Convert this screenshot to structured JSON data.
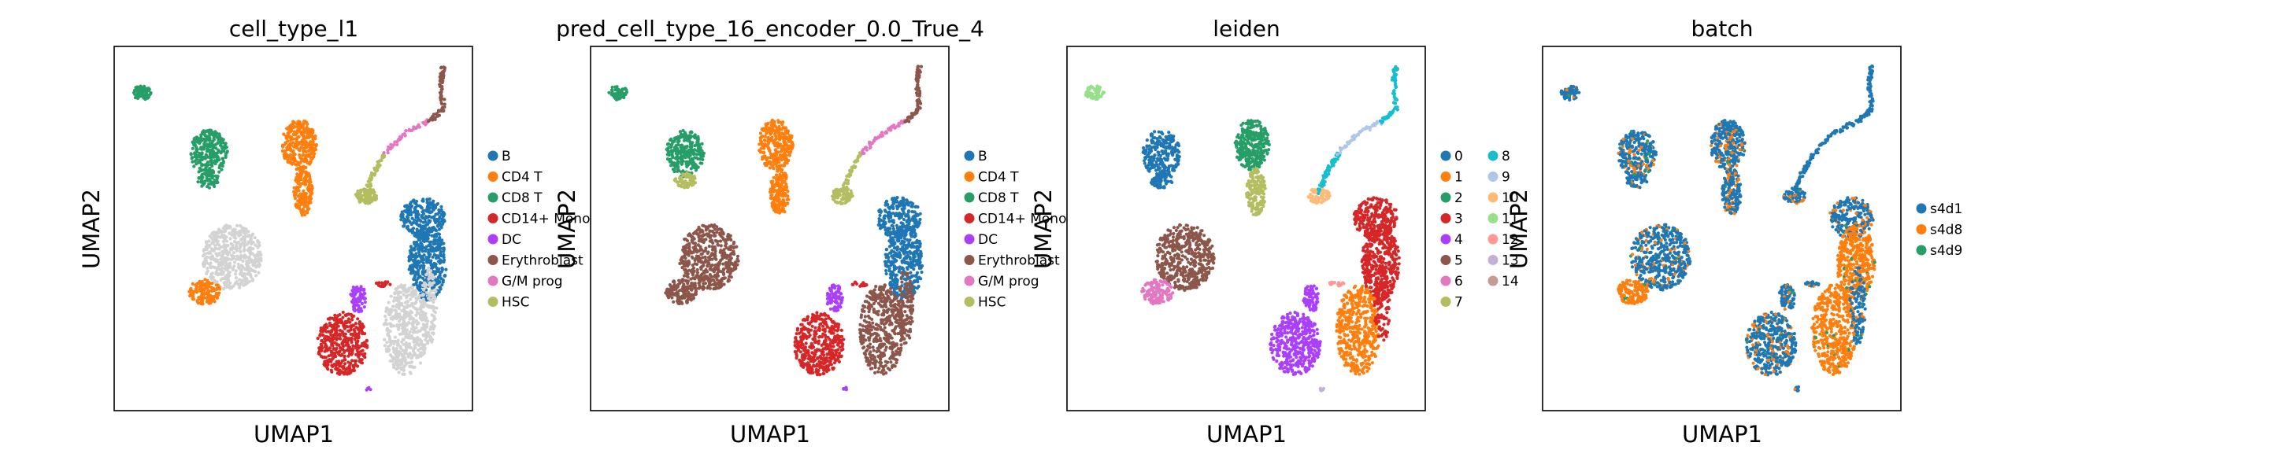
{
  "panels": [
    {
      "title": "cell_type_l1",
      "xlabel": "UMAP1",
      "ylabel": "UMAP2",
      "legend": [
        {
          "label": "B",
          "color": "#1f77b4"
        },
        {
          "label": "CD4 T",
          "color": "#ff7f0e"
        },
        {
          "label": "CD8 T",
          "color": "#279e68"
        },
        {
          "label": "CD14+ Mono",
          "color": "#d62728"
        },
        {
          "label": "DC",
          "color": "#aa40fc"
        },
        {
          "label": "Erythroblast",
          "color": "#8c564b"
        },
        {
          "label": "G/M prog",
          "color": "#e377c2"
        },
        {
          "label": "HSC",
          "color": "#b5bd61"
        }
      ]
    },
    {
      "title": "pred_cell_type_16_encoder_0.0_True_4",
      "xlabel": "UMAP1",
      "ylabel": "UMAP2",
      "legend": [
        {
          "label": "B",
          "color": "#1f77b4"
        },
        {
          "label": "CD4 T",
          "color": "#ff7f0e"
        },
        {
          "label": "CD8 T",
          "color": "#279e68"
        },
        {
          "label": "CD14+ Mono",
          "color": "#d62728"
        },
        {
          "label": "DC",
          "color": "#aa40fc"
        },
        {
          "label": "Erythroblast",
          "color": "#8c564b"
        },
        {
          "label": "G/M prog",
          "color": "#e377c2"
        },
        {
          "label": "HSC",
          "color": "#b5bd61"
        }
      ]
    },
    {
      "title": "leiden",
      "xlabel": "UMAP1",
      "ylabel": "UMAP2",
      "legend": [
        {
          "label": "0",
          "color": "#1f77b4"
        },
        {
          "label": "1",
          "color": "#ff7f0e"
        },
        {
          "label": "2",
          "color": "#279e68"
        },
        {
          "label": "3",
          "color": "#d62728"
        },
        {
          "label": "4",
          "color": "#aa40fc"
        },
        {
          "label": "5",
          "color": "#8c564b"
        },
        {
          "label": "6",
          "color": "#e377c2"
        },
        {
          "label": "7",
          "color": "#b5bd61"
        },
        {
          "label": "8",
          "color": "#17becf"
        },
        {
          "label": "9",
          "color": "#aec7e8"
        },
        {
          "label": "10",
          "color": "#ffbb78"
        },
        {
          "label": "11",
          "color": "#98df8a"
        },
        {
          "label": "12",
          "color": "#ff9896"
        },
        {
          "label": "13",
          "color": "#c5b0d5"
        },
        {
          "label": "14",
          "color": "#c49c94"
        }
      ]
    },
    {
      "title": "batch",
      "xlabel": "UMAP1",
      "ylabel": "UMAP2",
      "legend": [
        {
          "label": "s4d1",
          "color": "#1f77b4"
        },
        {
          "label": "s4d8",
          "color": "#ff7f0e"
        },
        {
          "label": "s4d9",
          "color": "#279e68"
        }
      ]
    }
  ],
  "chart_data": [
    {
      "type": "scatter",
      "title": "cell_type_l1",
      "xlabel": "UMAP1",
      "ylabel": "UMAP2",
      "grid": false,
      "legend_position": "right",
      "series": [
        {
          "name": "B"
        },
        {
          "name": "CD4 T"
        },
        {
          "name": "CD8 T"
        },
        {
          "name": "CD14+ Mono"
        },
        {
          "name": "DC"
        },
        {
          "name": "Erythroblast"
        },
        {
          "name": "G/M prog"
        },
        {
          "name": "HSC"
        }
      ]
    },
    {
      "type": "scatter",
      "title": "pred_cell_type_16_encoder_0.0_True_4",
      "xlabel": "UMAP1",
      "ylabel": "UMAP2",
      "grid": false,
      "legend_position": "right",
      "series": [
        {
          "name": "B"
        },
        {
          "name": "CD4 T"
        },
        {
          "name": "CD8 T"
        },
        {
          "name": "CD14+ Mono"
        },
        {
          "name": "DC"
        },
        {
          "name": "Erythroblast"
        },
        {
          "name": "G/M prog"
        },
        {
          "name": "HSC"
        }
      ]
    },
    {
      "type": "scatter",
      "title": "leiden",
      "xlabel": "UMAP1",
      "ylabel": "UMAP2",
      "grid": false,
      "legend_position": "right",
      "series": [
        {
          "name": "0"
        },
        {
          "name": "1"
        },
        {
          "name": "2"
        },
        {
          "name": "3"
        },
        {
          "name": "4"
        },
        {
          "name": "5"
        },
        {
          "name": "6"
        },
        {
          "name": "7"
        },
        {
          "name": "8"
        },
        {
          "name": "9"
        },
        {
          "name": "10"
        },
        {
          "name": "11"
        },
        {
          "name": "12"
        },
        {
          "name": "13"
        },
        {
          "name": "14"
        }
      ]
    },
    {
      "type": "scatter",
      "title": "batch",
      "xlabel": "UMAP1",
      "ylabel": "UMAP2",
      "grid": false,
      "legend_position": "right",
      "series": [
        {
          "name": "s4d1"
        },
        {
          "name": "s4d8"
        },
        {
          "name": "s4d9"
        }
      ]
    }
  ]
}
